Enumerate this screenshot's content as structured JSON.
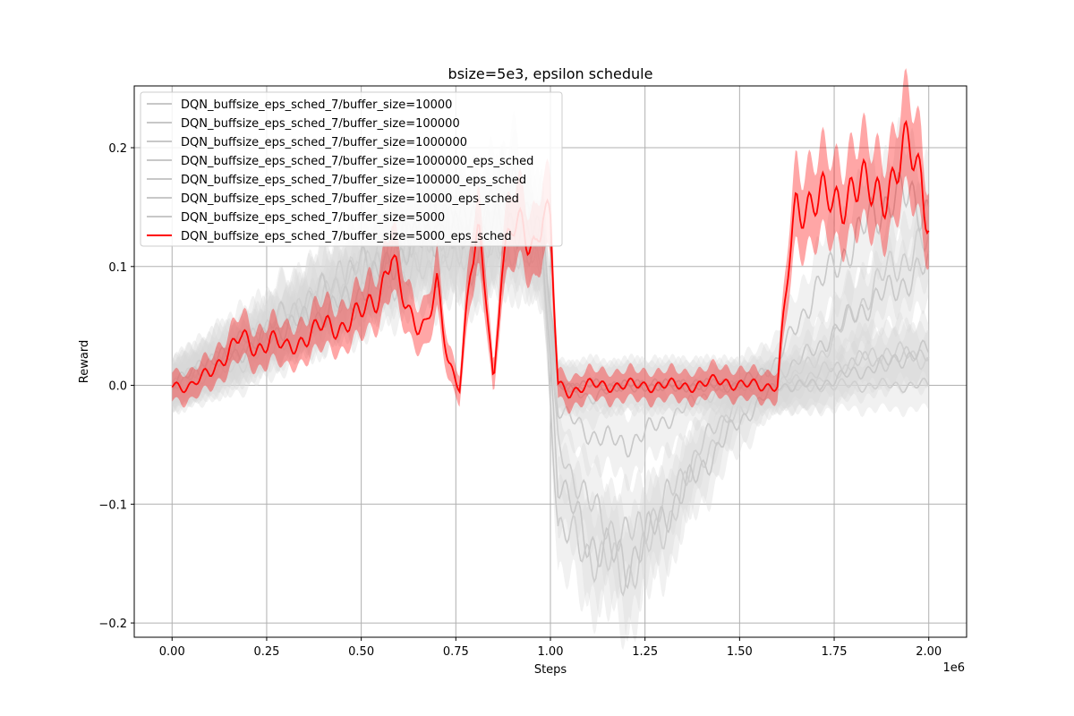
{
  "chart_data": {
    "type": "line",
    "title": "bsize=5e3, epsilon schedule",
    "xlabel": "Steps",
    "ylabel": "Reward",
    "x_offset_text": "1e6",
    "xlim": [
      -0.1,
      2.1
    ],
    "ylim": [
      -0.212,
      0.252
    ],
    "xticks": [
      0.0,
      0.25,
      0.5,
      0.75,
      1.0,
      1.25,
      1.5,
      1.75,
      2.0
    ],
    "xtick_labels": [
      "0.00",
      "0.25",
      "0.50",
      "0.75",
      "1.00",
      "1.25",
      "1.50",
      "1.75",
      "2.00"
    ],
    "yticks": [
      -0.2,
      -0.1,
      0.0,
      0.1,
      0.2
    ],
    "ytick_labels": [
      "−0.2",
      "−0.1",
      "0.0",
      "0.1",
      "0.2"
    ],
    "grid": true,
    "legend_position": "upper-left",
    "colors": {
      "gray": "#c8c8c8",
      "red": "#ff0000"
    },
    "series": [
      {
        "name": "DQN_buffsize_eps_sched_7/buffer_size=10000",
        "color": "#c8c8c8",
        "x": [
          0.0,
          0.1,
          0.2,
          0.3,
          0.4,
          0.5,
          0.6,
          0.7,
          0.8,
          0.9,
          0.98,
          1.02,
          1.1,
          1.2,
          1.3,
          1.4,
          1.5,
          1.6,
          1.7,
          1.8,
          1.9,
          2.0
        ],
        "y": [
          0.0,
          0.02,
          0.04,
          0.05,
          0.06,
          0.08,
          0.1,
          0.12,
          0.1,
          0.12,
          0.1,
          -0.12,
          -0.14,
          -0.16,
          -0.12,
          -0.06,
          -0.02,
          0.0,
          0.02,
          0.06,
          0.1,
          0.12
        ]
      },
      {
        "name": "DQN_buffsize_eps_sched_7/buffer_size=100000",
        "color": "#c8c8c8",
        "x": [
          0.0,
          0.1,
          0.2,
          0.3,
          0.4,
          0.5,
          0.6,
          0.7,
          0.8,
          0.9,
          0.98,
          1.02,
          1.1,
          1.2,
          1.3,
          1.4,
          1.5,
          1.6,
          1.7,
          1.8,
          1.9,
          2.0
        ],
        "y": [
          0.0,
          0.01,
          0.03,
          0.06,
          0.08,
          0.1,
          0.12,
          0.14,
          0.13,
          0.15,
          0.12,
          -0.05,
          -0.1,
          -0.13,
          -0.1,
          -0.05,
          -0.01,
          0.0,
          0.0,
          0.02,
          0.03,
          0.02
        ]
      },
      {
        "name": "DQN_buffsize_eps_sched_7/buffer_size=1000000",
        "color": "#c8c8c8",
        "x": [
          0.0,
          0.1,
          0.2,
          0.3,
          0.4,
          0.5,
          0.6,
          0.7,
          0.8,
          0.9,
          0.98,
          1.02,
          1.1,
          1.2,
          1.3,
          1.4,
          1.5,
          1.6,
          1.7,
          1.8,
          1.9,
          2.0
        ],
        "y": [
          0.0,
          0.01,
          0.02,
          0.04,
          0.06,
          0.07,
          0.09,
          0.1,
          0.11,
          0.12,
          0.1,
          -0.02,
          -0.04,
          -0.05,
          -0.03,
          -0.01,
          0.0,
          0.0,
          0.0,
          0.0,
          0.0,
          0.0
        ]
      },
      {
        "name": "DQN_buffsize_eps_sched_7/buffer_size=1000000_eps_sched",
        "color": "#c8c8c8",
        "x": [
          0.0,
          0.1,
          0.2,
          0.3,
          0.4,
          0.5,
          0.6,
          0.7,
          0.8,
          0.9,
          0.98,
          1.02,
          1.1,
          1.2,
          1.3,
          1.4,
          1.5,
          1.6,
          1.7,
          1.8,
          1.9,
          2.0
        ],
        "y": [
          0.0,
          0.01,
          0.03,
          0.05,
          0.07,
          0.09,
          0.11,
          0.12,
          0.12,
          0.13,
          0.11,
          0.0,
          0.0,
          0.0,
          0.0,
          0.0,
          0.0,
          0.0,
          0.01,
          0.02,
          0.02,
          0.03
        ]
      },
      {
        "name": "DQN_buffsize_eps_sched_7/buffer_size=100000_eps_sched",
        "color": "#c8c8c8",
        "x": [
          0.0,
          0.1,
          0.2,
          0.3,
          0.4,
          0.5,
          0.6,
          0.7,
          0.8,
          0.9,
          0.98,
          1.02,
          1.1,
          1.2,
          1.3,
          1.4,
          1.5,
          1.6,
          1.7,
          1.8,
          1.9,
          2.0
        ],
        "y": [
          0.0,
          0.02,
          0.03,
          0.05,
          0.08,
          0.1,
          0.12,
          0.13,
          0.14,
          0.15,
          0.12,
          0.0,
          -0.01,
          0.0,
          0.0,
          0.0,
          0.0,
          0.01,
          0.03,
          0.06,
          0.08,
          0.1
        ]
      },
      {
        "name": "DQN_buffsize_eps_sched_7/buffer_size=10000_eps_sched",
        "color": "#c8c8c8",
        "x": [
          0.0,
          0.1,
          0.2,
          0.3,
          0.4,
          0.5,
          0.6,
          0.7,
          0.8,
          0.9,
          0.98,
          1.02,
          1.1,
          1.2,
          1.3,
          1.4,
          1.5,
          1.6,
          1.7,
          1.8,
          1.9,
          2.0
        ],
        "y": [
          0.0,
          0.02,
          0.04,
          0.06,
          0.08,
          0.1,
          0.12,
          0.14,
          0.13,
          0.16,
          0.13,
          0.0,
          0.0,
          0.0,
          0.0,
          0.0,
          0.0,
          0.02,
          0.08,
          0.12,
          0.16,
          0.15
        ]
      },
      {
        "name": "DQN_buffsize_eps_sched_7/buffer_size=5000",
        "color": "#c8c8c8",
        "x": [
          0.0,
          0.1,
          0.2,
          0.3,
          0.4,
          0.5,
          0.6,
          0.7,
          0.8,
          0.9,
          0.98,
          1.02,
          1.1,
          1.2,
          1.3,
          1.4,
          1.5,
          1.6,
          1.7,
          1.8,
          1.9,
          2.0
        ],
        "y": [
          0.0,
          0.02,
          0.03,
          0.05,
          0.06,
          0.08,
          0.11,
          0.13,
          0.12,
          0.14,
          0.12,
          -0.08,
          -0.13,
          -0.15,
          -0.11,
          -0.07,
          -0.03,
          0.0,
          0.0,
          0.01,
          0.02,
          0.03
        ]
      },
      {
        "name": "DQN_buffsize_eps_sched_7/buffer_size=5000_eps_sched",
        "color": "#ff0000",
        "x": [
          0.0,
          0.05,
          0.1,
          0.15,
          0.18,
          0.22,
          0.26,
          0.3,
          0.35,
          0.4,
          0.45,
          0.5,
          0.55,
          0.58,
          0.6,
          0.63,
          0.67,
          0.7,
          0.73,
          0.76,
          0.79,
          0.81,
          0.83,
          0.85,
          0.87,
          0.9,
          0.93,
          0.96,
          0.98,
          1.0,
          1.02,
          1.05,
          1.1,
          1.15,
          1.2,
          1.3,
          1.4,
          1.45,
          1.5,
          1.55,
          1.6,
          1.63,
          1.65,
          1.7,
          1.75,
          1.8,
          1.85,
          1.9,
          1.95,
          1.98,
          2.0
        ],
        "y": [
          0.0,
          0.0,
          0.01,
          0.03,
          0.04,
          0.03,
          0.04,
          0.03,
          0.04,
          0.05,
          0.05,
          0.06,
          0.08,
          0.11,
          0.08,
          0.06,
          0.05,
          0.08,
          0.02,
          0.0,
          0.1,
          0.12,
          0.08,
          0.0,
          0.1,
          0.13,
          0.13,
          0.12,
          0.15,
          0.13,
          0.0,
          -0.005,
          0.0,
          0.0,
          0.0,
          0.0,
          0.0,
          0.005,
          0.0,
          0.0,
          0.0,
          0.1,
          0.15,
          0.16,
          0.15,
          0.17,
          0.16,
          0.17,
          0.2,
          0.18,
          0.14
        ]
      }
    ]
  }
}
